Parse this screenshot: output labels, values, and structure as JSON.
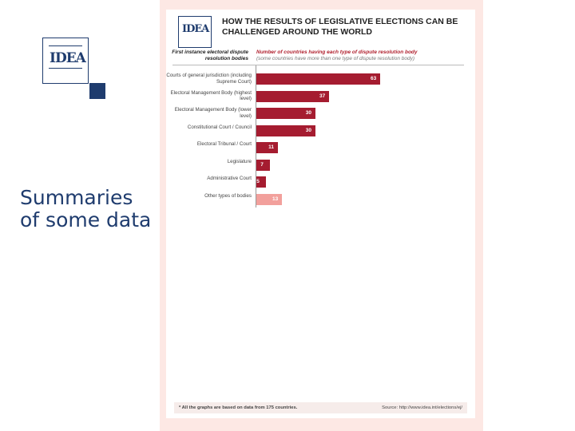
{
  "slide": {
    "summary_text": "Summaries of some data"
  },
  "logos": {
    "slide_logo_text": "IDEA",
    "card_logo_text": "IDEA"
  },
  "infographic": {
    "title": "HOW THE RESULTS OF LEGISLATIVE ELECTIONS CAN BE CHALLENGED AROUND THE WORLD",
    "left_column_header": "First instance electoral dispute resolution bodies",
    "right_column_header": "Number of countries having each type of dispute resolution body",
    "right_column_subheader": "(some countries have more than one type of dispute resolution body)",
    "footnote": "* All the graphs are based on data from 175 countries.",
    "source": "Source: http://www.idea.int/elections/ej/"
  },
  "colors": {
    "bar_primary": "#a51c30",
    "bar_light": "#f2a09c",
    "brand_blue": "#1f3c6e",
    "background_frame": "#fde8e4"
  },
  "chart_data": {
    "type": "bar",
    "orientation": "horizontal",
    "categories": [
      "Courts of general jurisdiction (including Supreme Court)",
      "Electoral Management Body (highest level)",
      "Electoral Management Body (lower level)",
      "Constitutional Court / Council",
      "Electoral Tribunal / Court",
      "Legislature",
      "Administrative Court",
      "Other types of bodies"
    ],
    "values": [
      63,
      37,
      30,
      30,
      11,
      7,
      5,
      13
    ],
    "xlim": [
      0,
      63
    ],
    "xlabel": "",
    "ylabel": "",
    "grid": false,
    "legend": "none"
  }
}
